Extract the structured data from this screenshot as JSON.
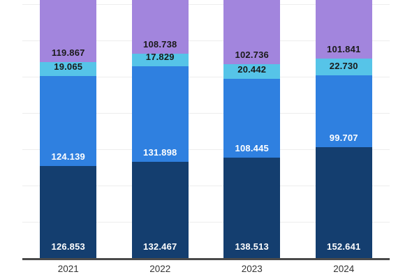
{
  "chart_title": "",
  "chart_data": {
    "type": "bar",
    "stacked": true,
    "title": "",
    "xlabel": "",
    "ylabel": "",
    "categories": [
      "2021",
      "2022",
      "2023",
      "2024"
    ],
    "series": [
      {
        "name": "segment-navy-bottom",
        "color": "#143e6f",
        "label_color": "#ffffff",
        "values": [
          126.853,
          132.467,
          138.513,
          152.641
        ],
        "labels": [
          "126.853",
          "132.467",
          "138.513",
          "152.641"
        ]
      },
      {
        "name": "segment-blue",
        "color": "#2f80e0",
        "label_color": "#ffffff",
        "values": [
          124.139,
          131.898,
          108.445,
          99.707
        ],
        "labels": [
          "124.139",
          "131.898",
          "108.445",
          "99.707"
        ]
      },
      {
        "name": "segment-cyan",
        "color": "#56c4e8",
        "label_color": "#1a1a1a",
        "values": [
          19.065,
          17.829,
          20.442,
          22.73
        ],
        "labels": [
          "19.065",
          "17.829",
          "20.442",
          "22.730"
        ]
      },
      {
        "name": "segment-purple-top",
        "color": "#a285dd",
        "label_color": "#1a1a1a",
        "values": [
          119.867,
          108.738,
          102.736,
          101.841
        ],
        "labels": [
          "119.867",
          "108.738",
          "102.736",
          "101.841"
        ]
      }
    ],
    "axis": {
      "grid": true,
      "units_per_gridline": 50,
      "gridline_color": "#ededed",
      "axis_line_color": "#4a4a4a",
      "visible_ylim": [
        0,
        355
      ],
      "top_cropped": true,
      "y_tick_labels_visible": false,
      "legend_visible": false
    }
  }
}
